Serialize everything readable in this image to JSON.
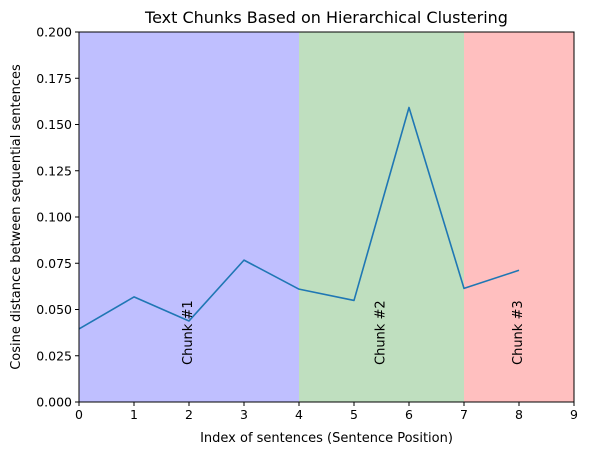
{
  "chart_data": {
    "type": "line",
    "title": "Text Chunks Based on Hierarchical Clustering",
    "xlabel": "Index of sentences (Sentence Position)",
    "ylabel": "Cosine distance between sequential sentences",
    "xlim": [
      0,
      9
    ],
    "ylim": [
      0,
      0.2
    ],
    "x_ticks": [
      "0",
      "1",
      "2",
      "3",
      "4",
      "5",
      "6",
      "7",
      "8",
      "9"
    ],
    "y_ticks": [
      "0.000",
      "0.025",
      "0.050",
      "0.075",
      "0.100",
      "0.125",
      "0.150",
      "0.175",
      "0.200"
    ],
    "grid": false,
    "series": [
      {
        "color": "#1f77b4",
        "x": [
          0,
          1,
          2,
          3,
          4,
          5,
          6,
          7,
          8
        ],
        "y": [
          0.0395,
          0.0568,
          0.0438,
          0.0767,
          0.061,
          0.0549,
          0.1592,
          0.0614,
          0.0712
        ]
      }
    ],
    "regions": [
      {
        "label": "Chunk #1",
        "x_start": 0,
        "x_end": 4,
        "color": "#bfbfff"
      },
      {
        "label": "Chunk #2",
        "x_start": 4,
        "x_end": 7,
        "color": "#bfdfbf"
      },
      {
        "label": "Chunk #3",
        "x_start": 7,
        "x_end": 9,
        "color": "#ffbfbf"
      }
    ]
  }
}
